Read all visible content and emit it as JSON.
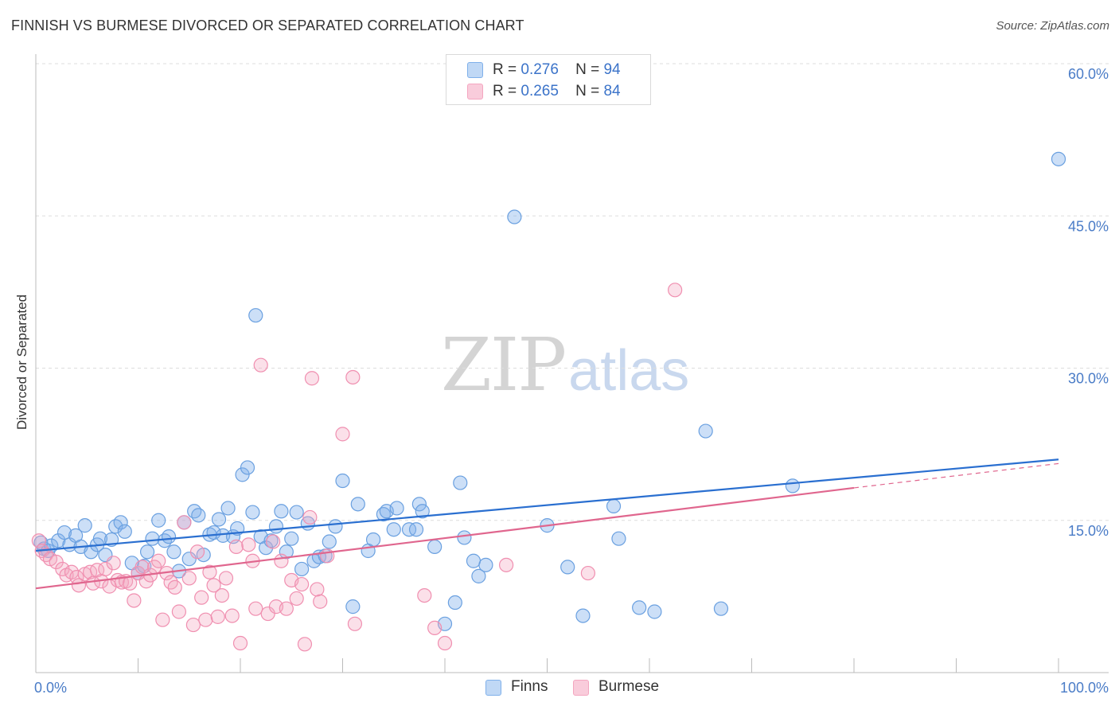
{
  "title": "FINNISH VS BURMESE DIVORCED OR SEPARATED CORRELATION CHART",
  "source": "Source: ZipAtlas.com",
  "watermark": {
    "zip": "ZIP",
    "atlas": "atlas"
  },
  "legend": {
    "rows": [
      {
        "r_label": "R =",
        "r_value": "0.276",
        "n_label": "N =",
        "n_value": "94"
      },
      {
        "r_label": "R =",
        "r_value": "0.265",
        "n_label": "N =",
        "n_value": "84"
      }
    ]
  },
  "chart_data": {
    "type": "scatter",
    "title": "FINNISH VS BURMESE DIVORCED OR SEPARATED CORRELATION CHART",
    "xlabel": "",
    "ylabel": "Divorced or Separated",
    "xlim": [
      0,
      100
    ],
    "ylim": [
      0,
      60
    ],
    "x_tick_labels": [
      "0.0%",
      "100.0%"
    ],
    "y_ticks": [
      15,
      30,
      45,
      60
    ],
    "y_tick_labels": [
      "15.0%",
      "30.0%",
      "45.0%",
      "60.0%"
    ],
    "grid": "horizontal dashed",
    "legend_position": "top-center",
    "colors": {
      "finns": "#7fb0ea",
      "burmese": "#f4a6c0",
      "finns_line": "#2a6fd0",
      "burmese_line": "#e0668e"
    },
    "series": [
      {
        "name": "Finns",
        "r": 0.276,
        "n": 94,
        "trend": {
          "x": [
            0,
            100
          ],
          "y": [
            12.0,
            21.0
          ]
        },
        "points": [
          [
            0.5,
            12.8
          ],
          [
            0.8,
            12.2
          ],
          [
            1.2,
            12.0
          ],
          [
            1.5,
            12.5
          ],
          [
            2.2,
            13.0
          ],
          [
            2.8,
            13.8
          ],
          [
            3.3,
            12.6
          ],
          [
            3.9,
            13.5
          ],
          [
            4.4,
            12.4
          ],
          [
            4.8,
            14.5
          ],
          [
            5.4,
            11.9
          ],
          [
            6.0,
            12.6
          ],
          [
            6.3,
            13.2
          ],
          [
            6.8,
            11.6
          ],
          [
            7.4,
            13.1
          ],
          [
            7.8,
            14.4
          ],
          [
            8.3,
            14.8
          ],
          [
            8.7,
            13.9
          ],
          [
            9.4,
            10.8
          ],
          [
            10.0,
            9.8
          ],
          [
            10.6,
            10.5
          ],
          [
            10.9,
            11.9
          ],
          [
            11.4,
            13.2
          ],
          [
            12.0,
            15.0
          ],
          [
            12.6,
            13.0
          ],
          [
            13.0,
            13.4
          ],
          [
            13.5,
            11.9
          ],
          [
            14.0,
            10.0
          ],
          [
            14.5,
            14.8
          ],
          [
            15.0,
            11.2
          ],
          [
            15.5,
            15.9
          ],
          [
            15.9,
            15.5
          ],
          [
            16.4,
            11.6
          ],
          [
            17.0,
            13.6
          ],
          [
            17.4,
            13.8
          ],
          [
            17.9,
            15.1
          ],
          [
            18.3,
            13.5
          ],
          [
            18.8,
            16.2
          ],
          [
            19.3,
            13.4
          ],
          [
            19.7,
            14.2
          ],
          [
            20.2,
            19.5
          ],
          [
            20.7,
            20.2
          ],
          [
            21.2,
            15.8
          ],
          [
            21.5,
            35.2
          ],
          [
            22.0,
            13.4
          ],
          [
            22.5,
            12.3
          ],
          [
            23.0,
            13.0
          ],
          [
            23.5,
            14.4
          ],
          [
            24.0,
            15.9
          ],
          [
            24.5,
            11.9
          ],
          [
            25.0,
            13.2
          ],
          [
            25.5,
            15.8
          ],
          [
            26.0,
            10.2
          ],
          [
            26.6,
            14.7
          ],
          [
            27.2,
            11.0
          ],
          [
            27.7,
            11.4
          ],
          [
            28.3,
            11.5
          ],
          [
            28.7,
            12.9
          ],
          [
            29.3,
            14.4
          ],
          [
            30.0,
            18.9
          ],
          [
            31.0,
            6.5
          ],
          [
            31.5,
            16.6
          ],
          [
            32.5,
            12.0
          ],
          [
            33.0,
            13.1
          ],
          [
            34.0,
            15.6
          ],
          [
            34.3,
            15.9
          ],
          [
            35.0,
            14.1
          ],
          [
            35.3,
            16.2
          ],
          [
            36.5,
            14.1
          ],
          [
            37.2,
            14.1
          ],
          [
            37.5,
            16.6
          ],
          [
            37.8,
            15.9
          ],
          [
            39.0,
            12.4
          ],
          [
            40.0,
            4.8
          ],
          [
            41.0,
            6.9
          ],
          [
            41.5,
            18.7
          ],
          [
            41.9,
            13.3
          ],
          [
            42.8,
            11.0
          ],
          [
            43.3,
            9.5
          ],
          [
            44.0,
            10.6
          ],
          [
            46.8,
            44.9
          ],
          [
            50.0,
            14.5
          ],
          [
            52.0,
            10.4
          ],
          [
            53.5,
            5.6
          ],
          [
            56.5,
            16.4
          ],
          [
            57.0,
            13.2
          ],
          [
            59.0,
            6.4
          ],
          [
            60.5,
            6.0
          ],
          [
            65.5,
            23.8
          ],
          [
            67.0,
            6.3
          ],
          [
            74.0,
            18.4
          ],
          [
            100.0,
            50.6
          ]
        ]
      },
      {
        "name": "Burmese",
        "r": 0.265,
        "n": 84,
        "trend": {
          "x": [
            0,
            80
          ],
          "y": [
            8.3,
            18.2
          ]
        },
        "trend_dashed": {
          "x": [
            80,
            100
          ],
          "y": [
            18.2,
            20.6
          ]
        },
        "points": [
          [
            0.3,
            13.0
          ],
          [
            0.6,
            12.0
          ],
          [
            1.0,
            11.6
          ],
          [
            1.4,
            11.2
          ],
          [
            2.0,
            10.9
          ],
          [
            2.6,
            10.2
          ],
          [
            3.0,
            9.6
          ],
          [
            3.5,
            9.9
          ],
          [
            4.0,
            9.4
          ],
          [
            4.2,
            8.6
          ],
          [
            4.8,
            9.7
          ],
          [
            5.3,
            9.9
          ],
          [
            5.6,
            8.8
          ],
          [
            6.0,
            10.1
          ],
          [
            6.4,
            9.0
          ],
          [
            6.8,
            10.2
          ],
          [
            7.2,
            8.5
          ],
          [
            7.6,
            10.8
          ],
          [
            8.0,
            9.1
          ],
          [
            8.4,
            8.9
          ],
          [
            8.8,
            9.0
          ],
          [
            9.2,
            8.8
          ],
          [
            9.6,
            7.1
          ],
          [
            10.0,
            9.8
          ],
          [
            10.4,
            10.4
          ],
          [
            10.8,
            9.0
          ],
          [
            11.2,
            9.6
          ],
          [
            11.6,
            10.4
          ],
          [
            12.0,
            11.0
          ],
          [
            12.4,
            5.2
          ],
          [
            12.8,
            9.8
          ],
          [
            13.2,
            8.9
          ],
          [
            13.6,
            8.4
          ],
          [
            14.0,
            6.0
          ],
          [
            14.5,
            14.8
          ],
          [
            15.0,
            9.3
          ],
          [
            15.4,
            4.7
          ],
          [
            15.8,
            11.9
          ],
          [
            16.2,
            7.4
          ],
          [
            16.6,
            5.2
          ],
          [
            17.0,
            9.9
          ],
          [
            17.4,
            8.6
          ],
          [
            17.8,
            5.5
          ],
          [
            18.2,
            7.6
          ],
          [
            18.6,
            9.3
          ],
          [
            19.2,
            5.6
          ],
          [
            19.6,
            12.4
          ],
          [
            20.0,
            2.9
          ],
          [
            20.8,
            12.6
          ],
          [
            21.2,
            11.0
          ],
          [
            21.5,
            6.3
          ],
          [
            22.0,
            30.3
          ],
          [
            22.7,
            5.8
          ],
          [
            23.2,
            12.9
          ],
          [
            23.5,
            6.5
          ],
          [
            24.0,
            11.0
          ],
          [
            24.5,
            6.3
          ],
          [
            25.0,
            9.1
          ],
          [
            25.5,
            7.3
          ],
          [
            26.0,
            8.7
          ],
          [
            26.3,
            2.8
          ],
          [
            26.8,
            15.3
          ],
          [
            27.0,
            29.0
          ],
          [
            27.5,
            8.2
          ],
          [
            27.8,
            7.0
          ],
          [
            28.5,
            11.5
          ],
          [
            30.0,
            23.5
          ],
          [
            31.0,
            29.1
          ],
          [
            31.2,
            4.8
          ],
          [
            38.0,
            7.6
          ],
          [
            39.0,
            4.4
          ],
          [
            40.0,
            2.9
          ],
          [
            46.0,
            10.6
          ],
          [
            54.0,
            9.8
          ],
          [
            62.5,
            37.7
          ]
        ]
      }
    ]
  },
  "bottom_legend": [
    {
      "label": "Finns"
    },
    {
      "label": "Burmese"
    }
  ]
}
